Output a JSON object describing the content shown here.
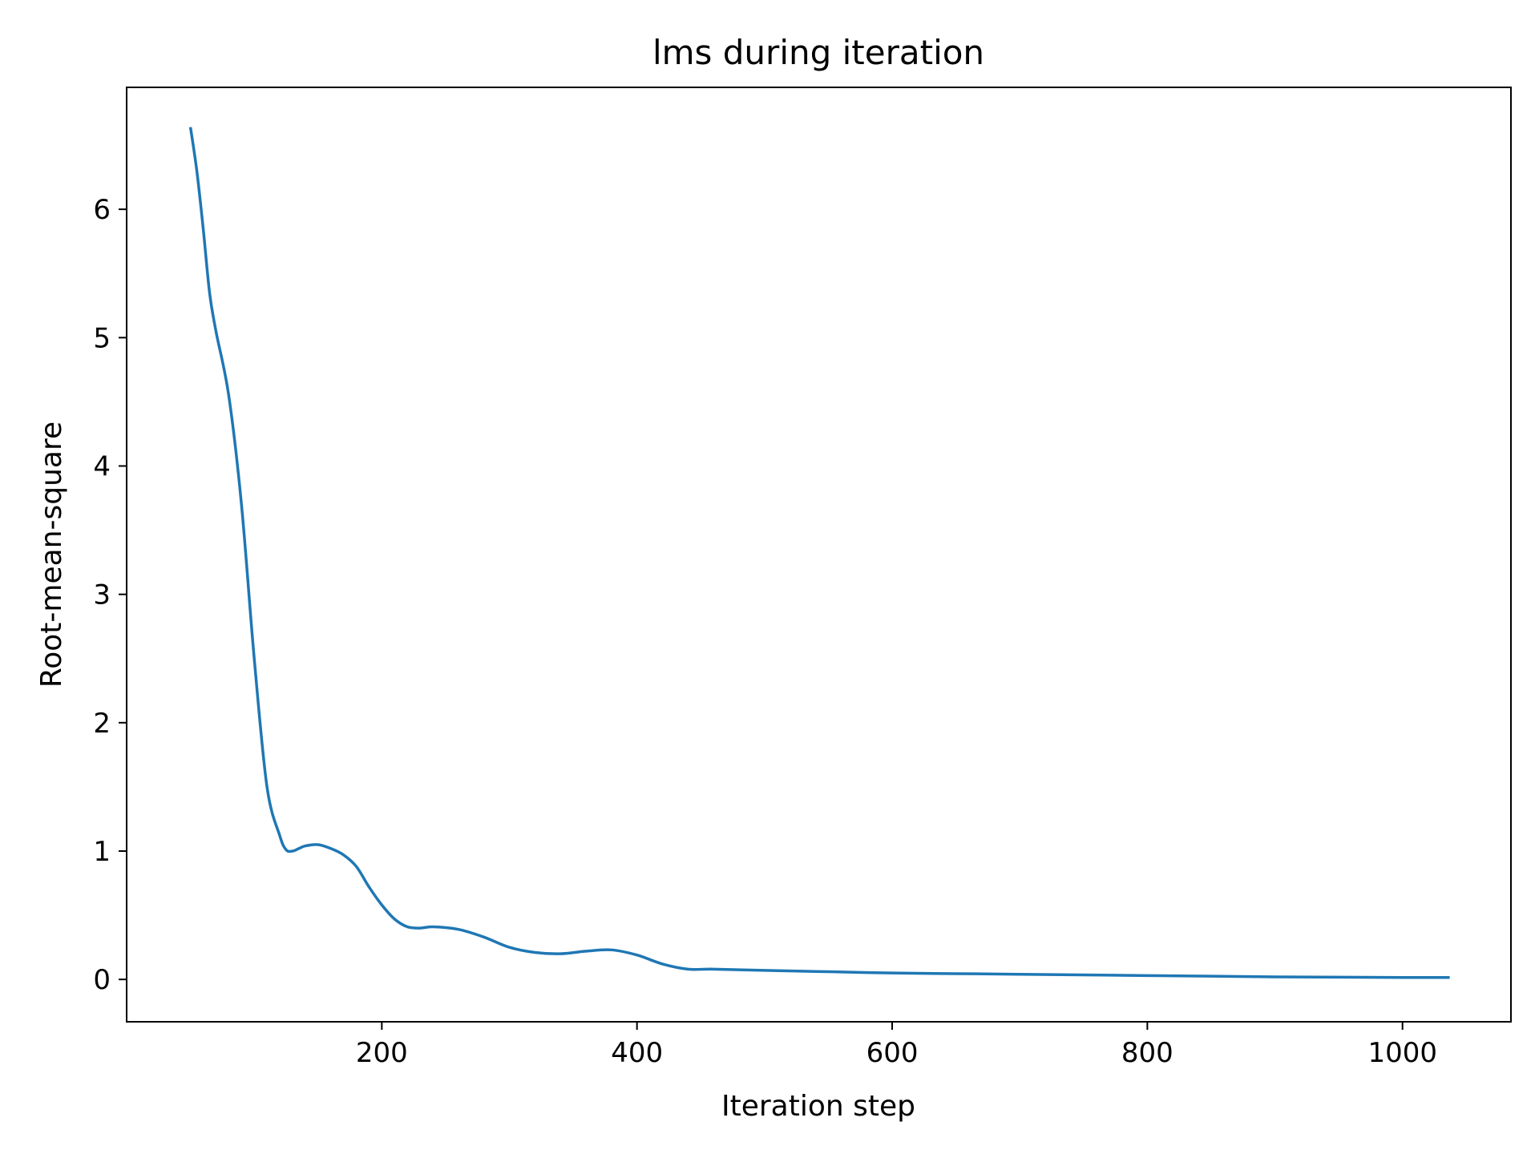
{
  "chart_data": {
    "type": "line",
    "title": "lms during iteration",
    "xlabel": "Iteration step",
    "ylabel": "Root-mean-square",
    "xlim": [
      0,
      1085
    ],
    "ylim": [
      -0.33,
      6.95
    ],
    "xticks": [
      200,
      400,
      600,
      800,
      1000
    ],
    "yticks": [
      0,
      1,
      2,
      3,
      4,
      5,
      6
    ],
    "grid": false,
    "series": [
      {
        "color": "#1f77b4",
        "x": [
          50,
          55,
          60,
          65,
          70,
          80,
          90,
          100,
          110,
          120,
          125,
          130,
          135,
          140,
          150,
          160,
          170,
          180,
          190,
          200,
          210,
          220,
          230,
          240,
          260,
          280,
          300,
          320,
          340,
          360,
          380,
          400,
          420,
          440,
          460,
          500,
          550,
          600,
          650,
          700,
          800,
          900,
          1000,
          1037
        ],
        "y": [
          6.64,
          6.3,
          5.85,
          5.35,
          5.05,
          4.55,
          3.7,
          2.5,
          1.5,
          1.12,
          1.01,
          1.0,
          1.02,
          1.04,
          1.05,
          1.02,
          0.97,
          0.88,
          0.72,
          0.58,
          0.47,
          0.41,
          0.4,
          0.41,
          0.39,
          0.33,
          0.25,
          0.21,
          0.2,
          0.22,
          0.23,
          0.19,
          0.12,
          0.08,
          0.08,
          0.07,
          0.06,
          0.05,
          0.045,
          0.04,
          0.03,
          0.02,
          0.015,
          0.015
        ]
      }
    ]
  }
}
